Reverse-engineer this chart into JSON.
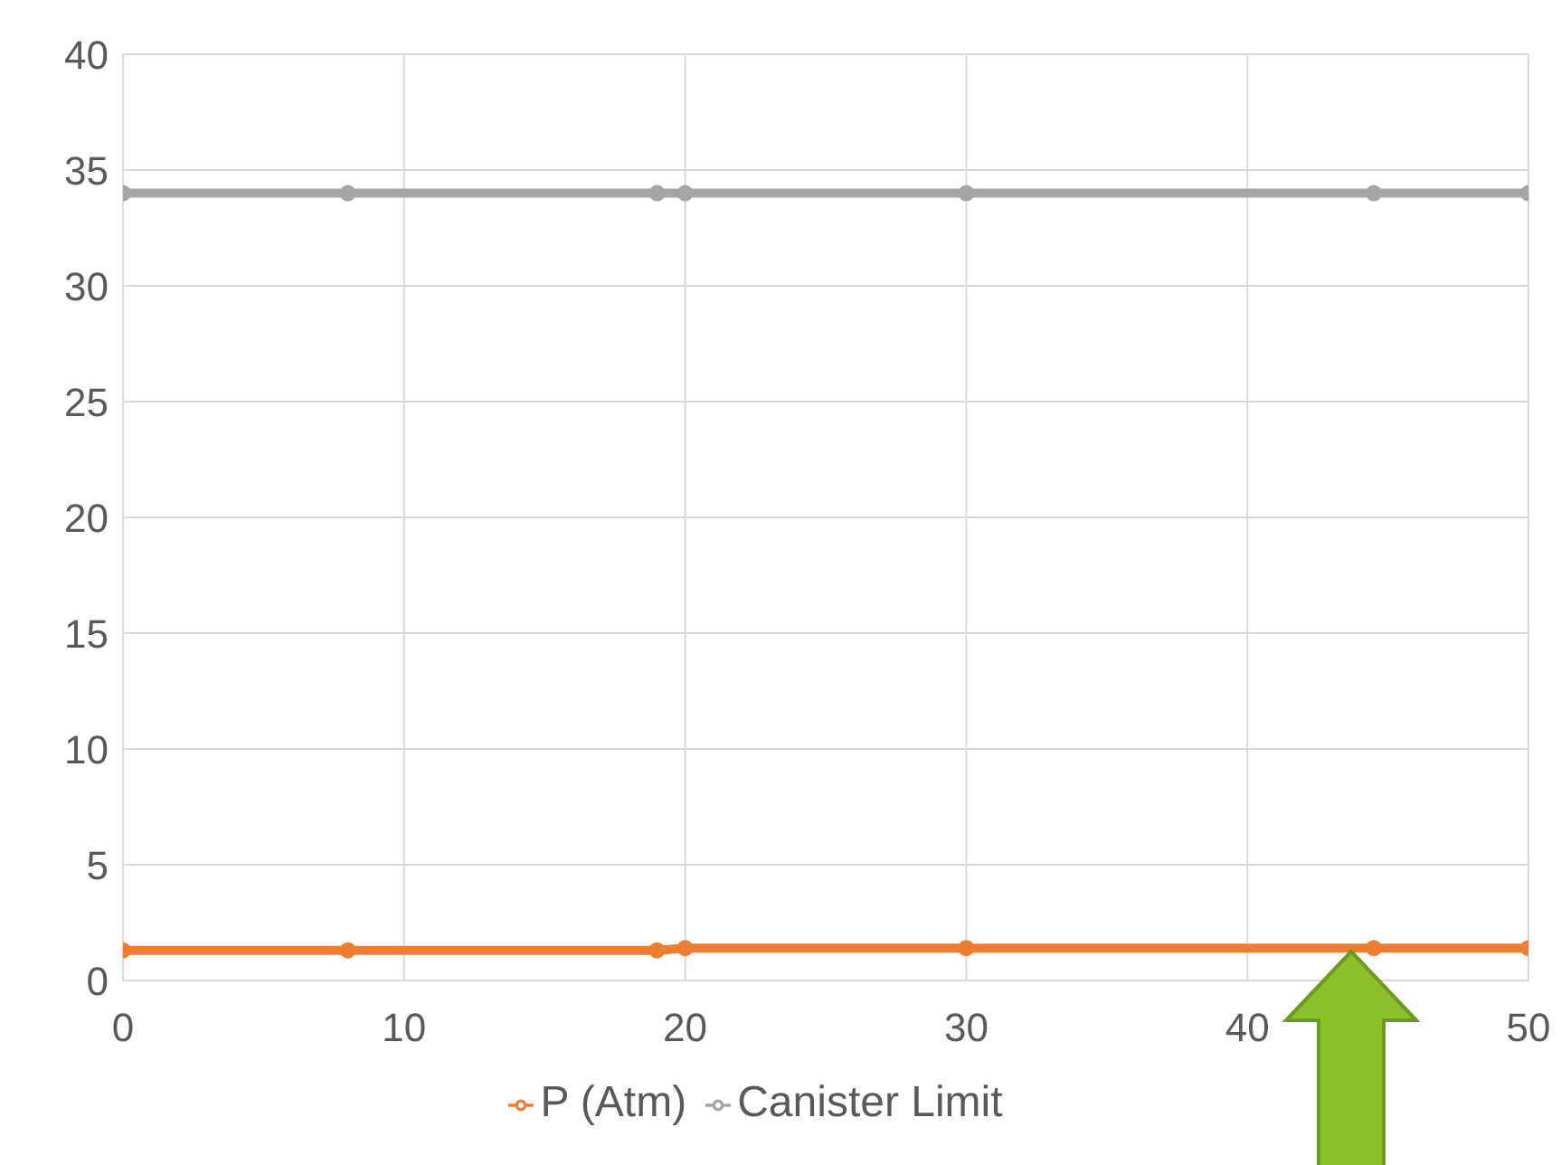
{
  "chart_data": {
    "type": "line",
    "x": [
      0,
      8,
      19,
      20,
      30,
      44.5,
      50
    ],
    "series": [
      {
        "name": "P (Atm)",
        "color": "#ed7d31",
        "values": [
          1.3,
          1.3,
          1.3,
          1.4,
          1.4,
          1.4,
          1.4
        ]
      },
      {
        "name": "Canister Limit",
        "color": "#a5a5a5",
        "values": [
          34,
          34,
          34,
          34,
          34,
          34,
          34
        ]
      }
    ],
    "xlim": [
      0,
      50
    ],
    "xticks": [
      0,
      10,
      20,
      30,
      40,
      50
    ],
    "ylim": [
      0,
      40
    ],
    "yticks": [
      0,
      5,
      10,
      15,
      20,
      25,
      30,
      35,
      40
    ],
    "grid": true,
    "legend": "bottom",
    "marker": "circle",
    "line_style": "solid"
  }
}
